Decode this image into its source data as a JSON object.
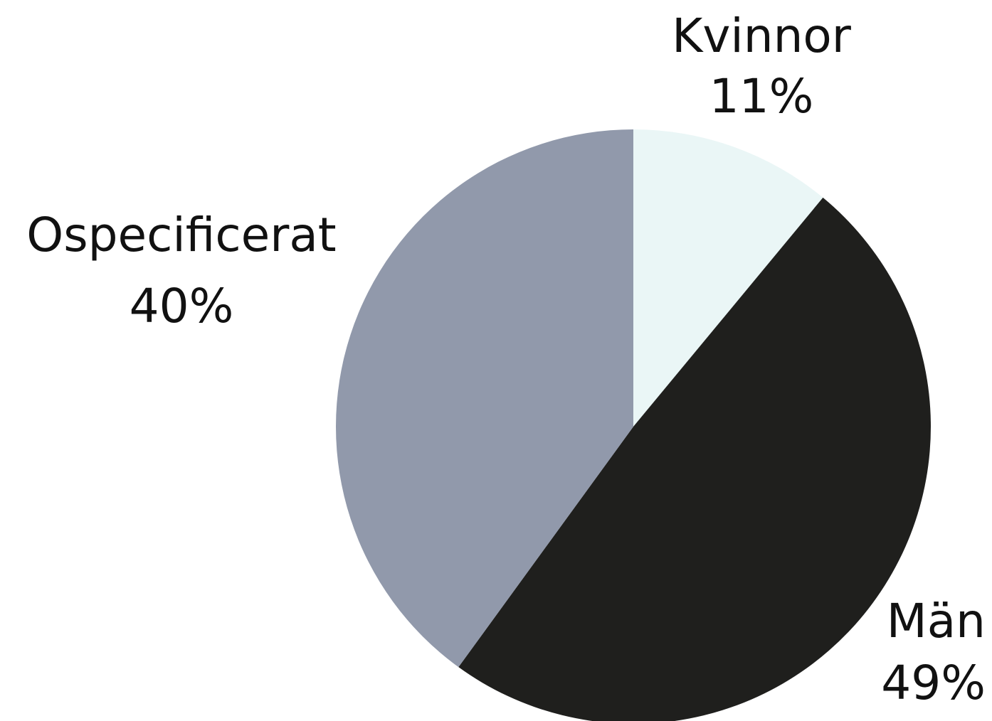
{
  "chart_data": {
    "type": "pie",
    "categories": [
      "Kvinnor",
      "Män",
      "Ospecificerat"
    ],
    "values": [
      11,
      49,
      40
    ],
    "value_labels": [
      "11%",
      "49%",
      "40%"
    ],
    "colors": [
      "#eaf6f6",
      "#1f1f1d",
      "#9199ab"
    ]
  }
}
